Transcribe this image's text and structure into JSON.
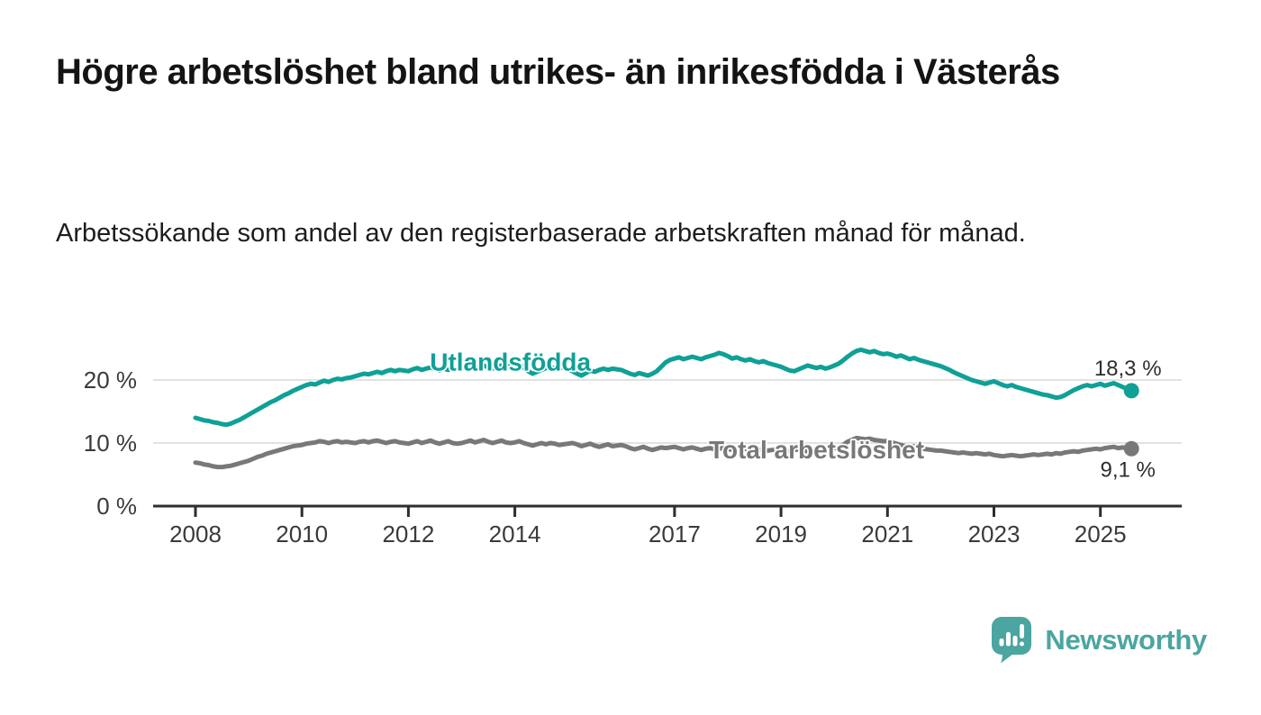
{
  "header": {
    "title": "Högre arbetslöshet bland utrikes- än inrikesfödda i Västerås",
    "subtitle": "Arbetssökande som andel av den registerbaserade arbetskraften månad för månad."
  },
  "colors": {
    "background": "#ffffff",
    "axis": "#2e2e2e",
    "gridline": "#d8d8d8",
    "tick_label": "#3a3a3a",
    "title": "#141414",
    "subtitle": "#1d1d1d",
    "value_label": "#2e2e2e",
    "series_utlandsfodda": "#0FA096",
    "series_total": "#787878",
    "brand_teal": "#4BA5A0"
  },
  "chart_data": {
    "type": "line",
    "title": "Högre arbetslöshet bland utrikes- än inrikesfödda i Västerås",
    "subtitle": "Arbetssökande som andel av den registerbaserade arbetskraften månad för månad.",
    "x": {
      "frequency": "monthly",
      "start": "2008-01",
      "end": "2025-08"
    },
    "x_ticks": [
      2008,
      2010,
      2012,
      2014,
      2017,
      2019,
      2021,
      2023,
      2025
    ],
    "y_ticks": [
      {
        "v": 0,
        "label": "0 %"
      },
      {
        "v": 10,
        "label": "10 %"
      },
      {
        "v": 20,
        "label": "20 %"
      }
    ],
    "ylim": [
      0,
      27.5
    ],
    "grid": "horizontal",
    "legend": "inline-labels",
    "series": [
      {
        "name": "Utlandsfödda",
        "color": "#0FA096",
        "end_value": 18.3,
        "end_label": "18,3 %",
        "end_label_position": "above",
        "label_anchor_index": 71,
        "label_baseline_offset": 5,
        "values": [
          14.0,
          13.8,
          13.6,
          13.5,
          13.3,
          13.2,
          13.0,
          12.9,
          13.1,
          13.4,
          13.7,
          14.1,
          14.5,
          14.9,
          15.3,
          15.7,
          16.1,
          16.5,
          16.8,
          17.2,
          17.6,
          17.9,
          18.3,
          18.6,
          18.9,
          19.2,
          19.4,
          19.3,
          19.6,
          19.9,
          19.7,
          20.0,
          20.2,
          20.1,
          20.3,
          20.4,
          20.6,
          20.8,
          21.0,
          20.9,
          21.1,
          21.3,
          21.1,
          21.4,
          21.6,
          21.4,
          21.6,
          21.5,
          21.4,
          21.7,
          21.9,
          21.6,
          21.8,
          22.0,
          21.7,
          21.5,
          21.8,
          21.6,
          21.9,
          21.7,
          21.8,
          22.0,
          22.2,
          21.9,
          22.1,
          22.3,
          22.0,
          21.8,
          22.1,
          22.3,
          22.1,
          22.2,
          22.3,
          22.5,
          21.9,
          21.4,
          21.0,
          21.3,
          21.6,
          21.9,
          22.1,
          21.8,
          22.0,
          21.9,
          21.7,
          21.4,
          21.0,
          20.7,
          21.1,
          21.5,
          21.3,
          21.6,
          21.8,
          21.6,
          21.8,
          21.7,
          21.6,
          21.3,
          21.0,
          20.8,
          21.1,
          20.9,
          20.7,
          21.0,
          21.4,
          22.1,
          22.8,
          23.2,
          23.4,
          23.6,
          23.3,
          23.5,
          23.7,
          23.5,
          23.3,
          23.6,
          23.8,
          24.0,
          24.3,
          24.1,
          23.8,
          23.4,
          23.6,
          23.3,
          23.1,
          23.3,
          23.0,
          22.8,
          23.0,
          22.7,
          22.5,
          22.3,
          22.1,
          21.8,
          21.5,
          21.4,
          21.7,
          22.0,
          22.3,
          22.1,
          21.9,
          22.1,
          21.8,
          22.0,
          22.3,
          22.6,
          23.1,
          23.7,
          24.2,
          24.6,
          24.8,
          24.6,
          24.4,
          24.6,
          24.3,
          24.1,
          24.2,
          24.0,
          23.7,
          23.9,
          23.6,
          23.3,
          23.5,
          23.2,
          23.0,
          22.8,
          22.6,
          22.4,
          22.2,
          21.9,
          21.6,
          21.2,
          20.9,
          20.6,
          20.3,
          20.0,
          19.8,
          19.6,
          19.4,
          19.6,
          19.8,
          19.5,
          19.2,
          19.0,
          19.2,
          18.9,
          18.7,
          18.5,
          18.3,
          18.1,
          17.9,
          17.7,
          17.6,
          17.4,
          17.2,
          17.3,
          17.6,
          18.0,
          18.4,
          18.7,
          19.0,
          19.2,
          19.0,
          19.2,
          19.4,
          19.1,
          19.3,
          19.5,
          19.2,
          18.9,
          18.6,
          18.3
        ]
      },
      {
        "name": "Total arbetslöshet",
        "color": "#787878",
        "end_value": 9.1,
        "end_label": "9,1 %",
        "end_label_position": "below",
        "label_anchor_index": 140,
        "label_baseline_offset": 10,
        "values": [
          6.9,
          6.8,
          6.6,
          6.5,
          6.3,
          6.2,
          6.2,
          6.3,
          6.4,
          6.6,
          6.8,
          7.0,
          7.2,
          7.5,
          7.8,
          8.0,
          8.3,
          8.5,
          8.7,
          8.9,
          9.1,
          9.3,
          9.5,
          9.6,
          9.7,
          9.9,
          10.0,
          10.1,
          10.3,
          10.2,
          10.0,
          10.2,
          10.3,
          10.1,
          10.2,
          10.1,
          10.0,
          10.2,
          10.3,
          10.1,
          10.3,
          10.4,
          10.2,
          10.0,
          10.2,
          10.3,
          10.1,
          10.0,
          9.9,
          10.1,
          10.3,
          10.0,
          10.2,
          10.4,
          10.1,
          9.9,
          10.1,
          10.3,
          10.0,
          9.9,
          10.0,
          10.2,
          10.4,
          10.1,
          10.3,
          10.5,
          10.2,
          10.0,
          10.2,
          10.4,
          10.1,
          10.0,
          10.1,
          10.3,
          10.0,
          9.8,
          9.6,
          9.8,
          10.0,
          9.8,
          10.0,
          9.9,
          9.7,
          9.8,
          9.9,
          10.0,
          9.8,
          9.5,
          9.7,
          9.9,
          9.6,
          9.4,
          9.6,
          9.8,
          9.5,
          9.6,
          9.7,
          9.5,
          9.2,
          9.0,
          9.2,
          9.4,
          9.1,
          8.9,
          9.1,
          9.3,
          9.2,
          9.3,
          9.4,
          9.2,
          9.0,
          9.2,
          9.3,
          9.1,
          8.9,
          9.1,
          9.2,
          9.0,
          9.1,
          9.2,
          9.1,
          8.9,
          8.8,
          9.0,
          9.1,
          8.9,
          8.7,
          8.9,
          9.0,
          8.8,
          8.9,
          9.0,
          8.9,
          8.8,
          8.7,
          8.9,
          9.0,
          8.8,
          8.7,
          8.9,
          9.0,
          8.9,
          9.0,
          9.1,
          9.2,
          9.3,
          9.7,
          10.2,
          10.5,
          10.8,
          10.7,
          10.6,
          10.7,
          10.5,
          10.4,
          10.3,
          10.3,
          10.1,
          9.9,
          9.7,
          9.5,
          9.4,
          9.5,
          9.3,
          9.1,
          9.0,
          8.9,
          8.8,
          8.8,
          8.7,
          8.6,
          8.5,
          8.4,
          8.5,
          8.4,
          8.3,
          8.4,
          8.3,
          8.2,
          8.3,
          8.1,
          8.0,
          7.9,
          8.0,
          8.1,
          8.0,
          7.9,
          8.0,
          8.1,
          8.2,
          8.1,
          8.2,
          8.3,
          8.2,
          8.4,
          8.3,
          8.5,
          8.6,
          8.7,
          8.6,
          8.8,
          8.9,
          9.0,
          9.1,
          9.0,
          9.2,
          9.3,
          9.4,
          9.2,
          9.3,
          9.2,
          9.1
        ]
      }
    ]
  },
  "branding": {
    "logo_text": "Newsworthy",
    "logo_icon": "bar-chart-speech-bubble-icon"
  }
}
